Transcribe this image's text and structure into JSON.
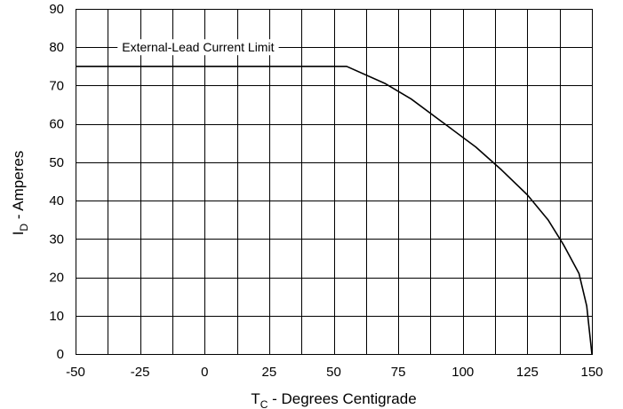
{
  "chart_data": {
    "type": "line",
    "xlabel": {
      "main": "T",
      "sub": "C",
      "rest": " - Degrees Centigrade"
    },
    "ylabel": {
      "main": "I",
      "sub": "D",
      "rest": " - Amperes"
    },
    "xlim": [
      -50,
      150
    ],
    "ylim": [
      0,
      90
    ],
    "x_major_ticks": [
      -50,
      -25,
      0,
      25,
      50,
      75,
      100,
      125,
      150
    ],
    "x_tick_labels": [
      "-50",
      "-25",
      "0",
      "25",
      "50",
      "75",
      "100",
      "125",
      "150"
    ],
    "x_grid_step": 12.5,
    "y_major_ticks": [
      0,
      10,
      20,
      30,
      40,
      50,
      60,
      70,
      80,
      90
    ],
    "y_tick_labels": [
      "0",
      "10",
      "20",
      "30",
      "40",
      "50",
      "60",
      "70",
      "80",
      "90"
    ],
    "grid": true,
    "series": [
      {
        "x": [
          -50,
          55,
          70,
          80,
          92,
          105,
          115,
          125,
          133,
          139,
          145,
          148,
          150
        ],
        "y": [
          75,
          75,
          70.5,
          66.5,
          60.5,
          54,
          48,
          41.5,
          35,
          28.5,
          21,
          12.5,
          0
        ]
      }
    ],
    "annotations": [
      {
        "text": "External-Lead Current Limit",
        "x": -32,
        "y": 80
      }
    ]
  }
}
